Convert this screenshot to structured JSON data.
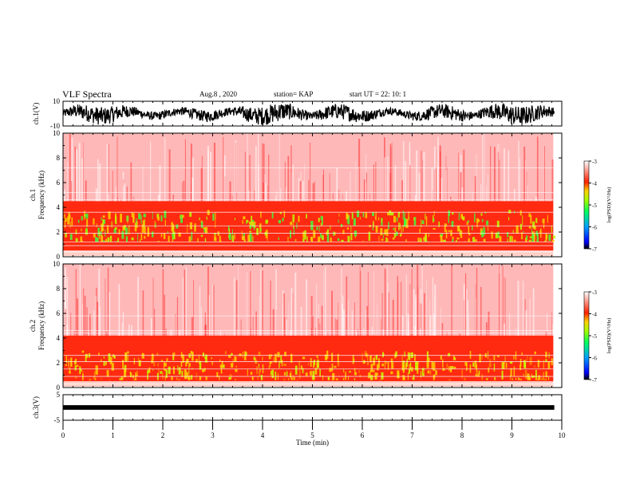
{
  "header": {
    "title": "VLF Spectra",
    "date": "Aug.8 , 2020",
    "station": "station= KAP",
    "start": "start UT = 22: 10: 1"
  },
  "colors": {
    "spectrogram_scale": [
      "#000000",
      "#0000ff",
      "#00a0ff",
      "#00ff60",
      "#a0ff00",
      "#ffd000",
      "#ff2000",
      "#ffffff"
    ]
  },
  "chart_data": [
    {
      "type": "line",
      "name": "ch.1 waveform",
      "ylabel": "ch.1(V)",
      "ylim": [
        -10,
        10
      ],
      "ytick_labels": [
        "10",
        "-10"
      ],
      "xlim": [
        0,
        10
      ]
    },
    {
      "type": "heatmap",
      "name": "ch.1 spectrogram",
      "ylabel_lines": [
        "ch.1",
        "Frequency (kHz)"
      ],
      "ylim": [
        0,
        10
      ],
      "yticks": [
        0,
        2,
        4,
        6,
        8,
        10
      ],
      "xlim": [
        0,
        9.83
      ],
      "intense_band_khz": [
        0.5,
        4.5
      ],
      "peak_band_khz": [
        1.2,
        3.8
      ],
      "colorbar": {
        "label": "log(PSD)(V²/Hz)",
        "ticks": [
          -3,
          -4,
          -5,
          -6,
          -7
        ],
        "range": [
          -7,
          -3
        ]
      }
    },
    {
      "type": "heatmap",
      "name": "ch.2 spectrogram",
      "ylabel_lines": [
        "ch.2",
        "Frequency (kHz)"
      ],
      "ylim": [
        0,
        10
      ],
      "yticks": [
        0,
        2,
        4,
        6,
        8,
        10
      ],
      "xlim": [
        0,
        9.83
      ],
      "intense_band_khz": [
        0.5,
        4.2
      ],
      "peak_band_khz": [
        0.6,
        3.0
      ],
      "colorbar": {
        "label": "log(PSD)(V²/Hz)",
        "ticks": [
          -3,
          -4,
          -5,
          -6,
          -7
        ],
        "range": [
          -7,
          -3
        ]
      }
    },
    {
      "type": "line",
      "name": "ch.3 waveform",
      "ylabel": "ch.3(V)",
      "ylim": [
        -5,
        5
      ],
      "ytick_labels": [
        "5",
        "-5"
      ],
      "xlim": [
        0,
        10
      ],
      "xlabel": "Time (min)",
      "xticks": [
        0,
        1,
        2,
        3,
        4,
        5,
        6,
        7,
        8,
        9,
        10
      ]
    }
  ]
}
